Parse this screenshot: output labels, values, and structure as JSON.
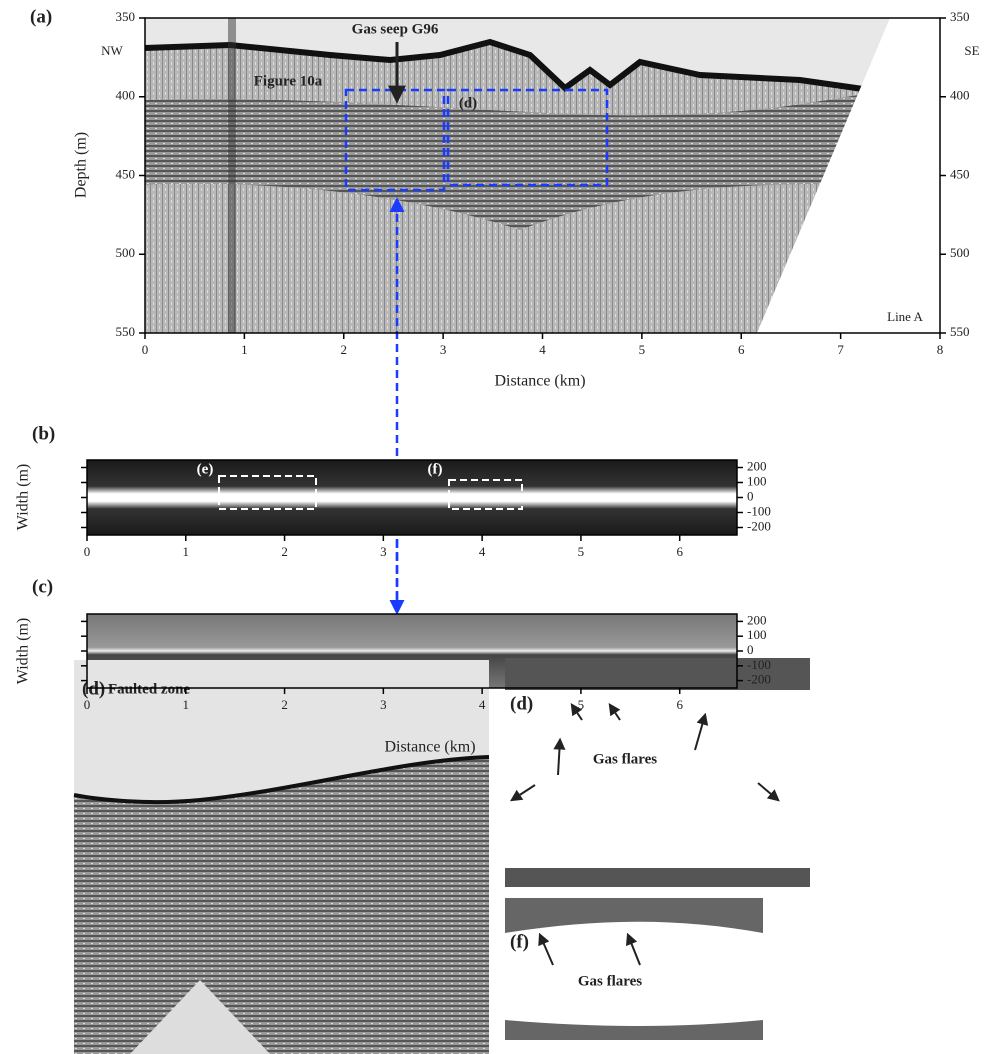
{
  "panel_a": {
    "label": "(a)",
    "y_label": "Depth (m)",
    "x_label": "Distance (km)",
    "xlim": [
      0,
      8
    ],
    "ylim": [
      550,
      350
    ],
    "xticks": [
      0,
      1,
      2,
      3,
      4,
      5,
      6,
      7,
      8
    ],
    "yticks": [
      350,
      400,
      450,
      500,
      550
    ],
    "annotations": {
      "nw": "NW",
      "se": "SE",
      "seep": "Gas seep G96",
      "figure": "Figure 10a",
      "box": "(d)",
      "line": "Line A"
    }
  },
  "panel_b": {
    "label": "(b)",
    "y_label": "Width (m)",
    "xlim": [
      0,
      6.58
    ],
    "ylim": [
      -250,
      250
    ],
    "xticks": [
      0,
      1,
      2,
      3,
      4,
      5,
      6
    ],
    "yticks": [
      200,
      100,
      0,
      -100,
      -200
    ],
    "box_labels": [
      "(e)",
      "(f)"
    ]
  },
  "panel_c": {
    "label": "(c)",
    "y_label": "Width (m)",
    "x_label": "Distance (km)",
    "xlim": [
      0,
      6.58
    ],
    "ylim": [
      -250,
      250
    ],
    "xticks": [
      0,
      1,
      2,
      3,
      4,
      5,
      6
    ],
    "yticks": [
      200,
      100,
      0,
      -100,
      -200
    ]
  },
  "panel_d": {
    "label": "(d)",
    "title": "Faulted zone"
  },
  "inset_d": {
    "label": "(d)",
    "caption": "Gas flares"
  },
  "inset_f": {
    "label": "(f)",
    "caption": "Gas flares"
  }
}
